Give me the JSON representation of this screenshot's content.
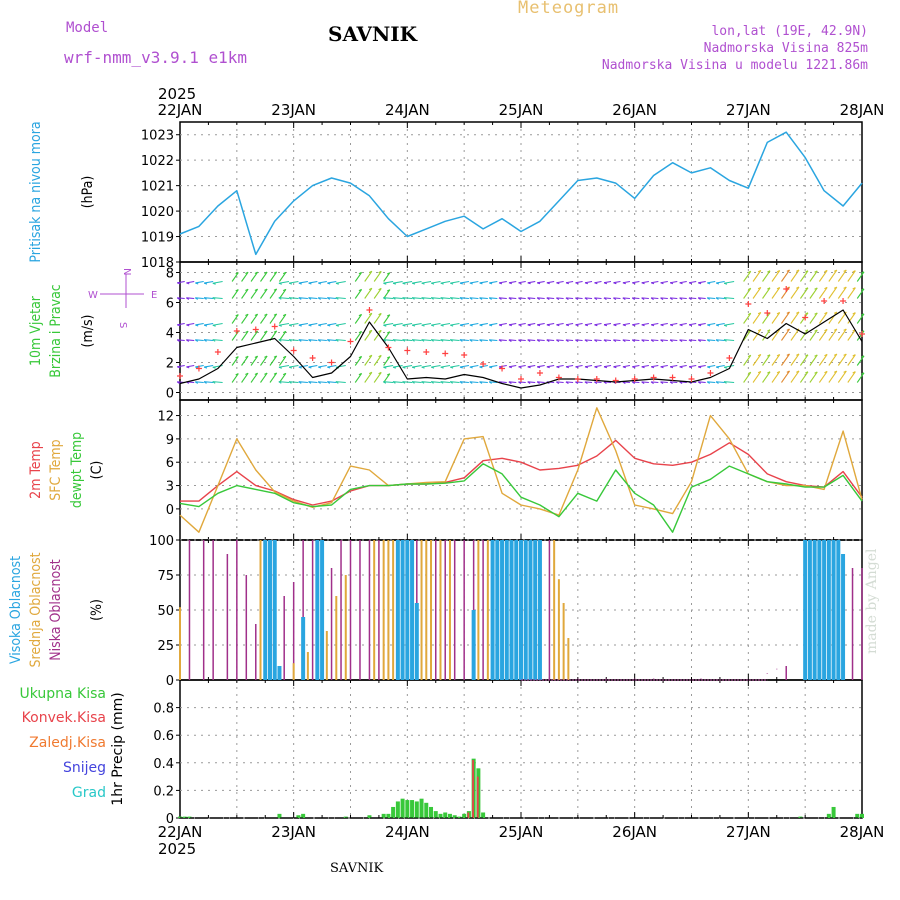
{
  "header": {
    "model_label": "Model",
    "model_name": "wrf-nmm_v3.9.1 e1km",
    "station": "SAVNIK",
    "kind": "Meteogram",
    "lonlat": "lon,lat (19E, 42.9N)",
    "elevation": "Nadmorska Visina 825m",
    "model_elevation": "Nadmorska Visina u modelu 1221.86m"
  },
  "footer": {
    "station": "SAVNIK",
    "credit": "made by Angel"
  },
  "colors": {
    "pressure": "#2aa5e0",
    "temp2m": "#e8434b",
    "sfc_temp": "#e0a83c",
    "dewpt": "#38c83a",
    "cloud_high": "#2aa5e0",
    "cloud_mid": "#e0a83c",
    "cloud_low": "#a0308a",
    "precip_total": "#38c83a",
    "precip_conv": "#e8434b",
    "precip_frz": "#f07a30",
    "snow": "#4444dd",
    "hail": "#28c8c8",
    "wind_speed": "#000000",
    "wind_gust": "#ff4040",
    "header_purple": "#b050d0",
    "header_orange": "#e8c070"
  },
  "chart_data": [
    {
      "type": "line",
      "panel": "pressure",
      "ylabel": [
        "Pritisak na nivou mora",
        "(hPa)"
      ],
      "ylim": [
        1018,
        1023.5
      ],
      "yticks": [
        1018,
        1019,
        1020,
        1021,
        1022,
        1023
      ],
      "x_hours": [
        0,
        4,
        8,
        12,
        16,
        20,
        24,
        28,
        32,
        36,
        40,
        44,
        48,
        52,
        56,
        60,
        64,
        68,
        72,
        76,
        80,
        84,
        88,
        92,
        96,
        100,
        104,
        108,
        112,
        116,
        120,
        124,
        128,
        132,
        136,
        140,
        144
      ],
      "series": [
        {
          "values": [
            1019.1,
            1019.4,
            1020.2,
            1020.8,
            1018.3,
            1019.6,
            1020.4,
            1021.0,
            1021.3,
            1021.1,
            1020.6,
            1019.7,
            1019.0,
            1019.3,
            1019.6,
            1019.8,
            1019.3,
            1019.7,
            1019.2,
            1019.6,
            1020.4,
            1021.2,
            1021.3,
            1021.1,
            1020.5,
            1021.4,
            1021.9,
            1021.5,
            1021.7,
            1021.2,
            1020.9,
            1022.7,
            1023.1,
            1022.1,
            1020.8,
            1020.2,
            1021.1
          ]
        }
      ]
    },
    {
      "type": "line",
      "panel": "wind",
      "ylabel": [
        "10m Vjetar",
        "Brzina i Pravac",
        "(m/s)"
      ],
      "direction_key": {
        "top": "N",
        "left": "W",
        "right": "E",
        "bottom": "S"
      },
      "ylim": [
        -0.5,
        8.7
      ],
      "yticks": [
        0,
        2,
        4,
        6,
        8
      ],
      "x_hours": [
        0,
        4,
        8,
        12,
        16,
        20,
        24,
        28,
        32,
        36,
        40,
        44,
        48,
        52,
        56,
        60,
        64,
        68,
        72,
        76,
        80,
        84,
        88,
        92,
        96,
        100,
        104,
        108,
        112,
        116,
        120,
        124,
        128,
        132,
        136,
        140,
        144
      ],
      "series": [
        {
          "values": [
            0.6,
            0.9,
            1.6,
            3.0,
            3.3,
            3.6,
            2.4,
            1.0,
            1.3,
            2.4,
            4.7,
            3.0,
            0.9,
            1.0,
            0.9,
            1.2,
            1.0,
            0.6,
            0.3,
            0.5,
            0.9,
            0.9,
            0.8,
            0.7,
            0.8,
            0.9,
            0.8,
            0.7,
            1.0,
            1.6,
            4.2,
            3.6,
            4.6,
            3.9,
            4.7,
            5.5,
            3.4
          ]
        },
        {
          "values": [
            1.1,
            1.6,
            2.7,
            4.1,
            4.2,
            4.4,
            2.8,
            2.3,
            2.0,
            3.4,
            5.5,
            3.0,
            2.8,
            2.7,
            2.6,
            2.5,
            1.9,
            1.6,
            0.9,
            1.3,
            1.0,
            0.9,
            0.9,
            0.8,
            0.9,
            1.0,
            1.0,
            0.9,
            1.3,
            2.3,
            5.9,
            5.3,
            6.9,
            5.0,
            6.1,
            6.1,
            3.9
          ]
        }
      ]
    },
    {
      "type": "line",
      "panel": "temperature",
      "ylabel": [
        "2m Temp",
        "SFC Temp",
        "dewpt Temp",
        "(C)"
      ],
      "ylim": [
        -4,
        14
      ],
      "yticks": [
        0,
        3,
        6,
        9,
        12
      ],
      "x_hours": [
        0,
        4,
        8,
        12,
        16,
        20,
        24,
        28,
        32,
        36,
        40,
        44,
        48,
        52,
        56,
        60,
        64,
        68,
        72,
        76,
        80,
        84,
        88,
        92,
        96,
        100,
        104,
        108,
        112,
        116,
        120,
        124,
        128,
        132,
        136,
        140,
        144
      ],
      "series": [
        {
          "values": [
            1.0,
            1.0,
            3.0,
            4.8,
            3.0,
            2.3,
            1.2,
            0.5,
            1.0,
            2.3,
            3.0,
            3.0,
            3.2,
            3.2,
            3.4,
            4.0,
            6.2,
            6.5,
            6.0,
            5.0,
            5.2,
            5.6,
            6.8,
            8.8,
            6.5,
            5.8,
            5.6,
            6.0,
            7.0,
            8.5,
            7.0,
            4.5,
            3.5,
            3.0,
            2.8,
            4.8,
            1.5
          ]
        },
        {
          "values": [
            -0.8,
            -3.0,
            3.0,
            9.0,
            5.0,
            2.2,
            1.0,
            0.2,
            0.8,
            5.5,
            5.0,
            3.0,
            3.2,
            3.4,
            3.5,
            9.0,
            9.3,
            2.0,
            0.5,
            0.0,
            -0.8,
            5.0,
            13.0,
            7.5,
            0.5,
            0.0,
            -0.6,
            3.5,
            12.0,
            9.0,
            4.5,
            3.5,
            3.0,
            3.0,
            2.5,
            10.0,
            1.2
          ]
        },
        {
          "values": [
            0.7,
            0.3,
            2.0,
            3.0,
            2.5,
            2.0,
            0.8,
            0.3,
            0.5,
            2.5,
            3.0,
            3.0,
            3.2,
            3.2,
            3.3,
            3.6,
            5.8,
            4.5,
            1.5,
            0.5,
            -1.0,
            2.0,
            1.0,
            5.0,
            2.0,
            0.5,
            -3.0,
            2.8,
            3.8,
            5.5,
            4.5,
            3.5,
            3.2,
            2.8,
            2.8,
            4.3,
            1.0
          ]
        }
      ]
    },
    {
      "type": "bar",
      "panel": "cloud",
      "ylabel": [
        "Visoka Oblacnost",
        "Srednja Oblacnost",
        "Niska Oblacnost",
        "(%)"
      ],
      "ylim": [
        0,
        100
      ],
      "yticks": [
        0,
        25,
        50,
        75,
        100
      ],
      "series": [
        {
          "name": "high",
          "x_hours": [
            18,
            19,
            20,
            21,
            26,
            29,
            30,
            46,
            47,
            48,
            49,
            50,
            62,
            66,
            67,
            68,
            69,
            70,
            71,
            72,
            73,
            74,
            75,
            76,
            132,
            133,
            134,
            135,
            136,
            137,
            138,
            139,
            140
          ],
          "values": [
            100,
            100,
            100,
            10,
            45,
            100,
            100,
            100,
            100,
            100,
            100,
            55,
            50,
            100,
            100,
            100,
            100,
            100,
            100,
            100,
            100,
            100,
            100,
            100,
            100,
            100,
            100,
            100,
            100,
            100,
            100,
            100,
            90
          ]
        },
        {
          "name": "mid",
          "x_hours": [
            0,
            17,
            24,
            27,
            31,
            33,
            35,
            41,
            43,
            44,
            45,
            51,
            52,
            53,
            55,
            57,
            63,
            65,
            71,
            72,
            75,
            76,
            79,
            80,
            81,
            82
          ],
          "values": [
            52,
            100,
            12,
            20,
            35,
            60,
            75,
            100,
            100,
            100,
            100,
            100,
            100,
            100,
            100,
            100,
            100,
            100,
            100,
            100,
            100,
            100,
            100,
            72,
            55,
            30
          ]
        },
        {
          "name": "low",
          "x_hours": [
            2,
            5,
            7,
            10,
            12,
            14,
            16,
            18,
            20,
            22,
            24,
            26,
            28,
            30,
            32,
            34,
            36,
            38,
            40,
            42,
            44,
            46,
            48,
            50,
            52,
            54,
            56,
            58,
            60,
            62,
            64,
            66,
            68,
            70,
            72,
            74,
            76,
            78,
            80,
            84,
            90,
            96,
            100,
            110,
            124,
            126,
            128,
            132,
            134,
            136,
            138,
            140,
            142,
            144
          ],
          "values": [
            100,
            100,
            100,
            90,
            100,
            75,
            40,
            100,
            100,
            60,
            70,
            100,
            100,
            100,
            80,
            100,
            100,
            100,
            100,
            100,
            100,
            100,
            100,
            100,
            100,
            100,
            100,
            100,
            100,
            100,
            100,
            100,
            100,
            100,
            100,
            100,
            100,
            100,
            1,
            1,
            1,
            1,
            1,
            1,
            5,
            8,
            10,
            82,
            85,
            100,
            82,
            85,
            80,
            80
          ]
        }
      ]
    },
    {
      "type": "bar",
      "panel": "precip",
      "ylabel": [
        "Ukupna Kisa",
        "Konvek.Kisa",
        "Zaledj.Kisa",
        "Snijeg",
        "Grad",
        "1hr Precip (mm)"
      ],
      "ylim": [
        0,
        1.0
      ],
      "yticks": [
        0,
        0.2,
        0.4,
        0.6,
        0.8
      ],
      "series": [
        {
          "name": "total",
          "x_hours": [
            0,
            1,
            2,
            21,
            25,
            26,
            35,
            40,
            43,
            44,
            45,
            46,
            47,
            48,
            49,
            50,
            51,
            52,
            53,
            54,
            55,
            56,
            57,
            58,
            59,
            60,
            61,
            62,
            63,
            64,
            131,
            137,
            138,
            143,
            144
          ],
          "values": [
            0.01,
            0.01,
            0.01,
            0.03,
            0.02,
            0.03,
            0.01,
            0.02,
            0.03,
            0.03,
            0.08,
            0.12,
            0.14,
            0.13,
            0.13,
            0.12,
            0.14,
            0.11,
            0.08,
            0.05,
            0.03,
            0.04,
            0.03,
            0.02,
            0.01,
            0.03,
            0.05,
            0.43,
            0.36,
            0.04,
            0.01,
            0.03,
            0.08,
            0.03,
            0.03
          ]
        },
        {
          "name": "convective",
          "x_hours": [
            61,
            62,
            63
          ],
          "values": [
            0.04,
            0.42,
            0.3
          ]
        }
      ]
    }
  ],
  "x_axis": {
    "year": "2025",
    "ticks": [
      {
        "hour": 0,
        "label": "22JAN"
      },
      {
        "hour": 24,
        "label": "23JAN"
      },
      {
        "hour": 48,
        "label": "24JAN"
      },
      {
        "hour": 72,
        "label": "25JAN"
      },
      {
        "hour": 96,
        "label": "26JAN"
      },
      {
        "hour": 120,
        "label": "27JAN"
      },
      {
        "hour": 144,
        "label": "28JAN"
      }
    ]
  }
}
